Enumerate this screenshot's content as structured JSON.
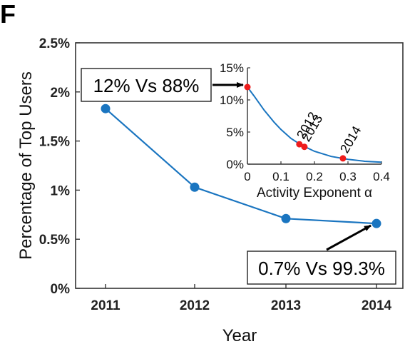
{
  "panel_label": "F",
  "chart_data": [
    {
      "type": "line",
      "xlabel": "Year",
      "ylabel": "Percentage of Top Users",
      "x": [
        "2011",
        "2012",
        "2013",
        "2014"
      ],
      "y": [
        1.83,
        1.03,
        0.71,
        0.66
      ],
      "y_unit": "%",
      "ylim": [
        0,
        2.5
      ],
      "y_ticks": [
        "0%",
        "0.5%",
        "1%",
        "1.5%",
        "2%",
        "2.5%"
      ],
      "y_tick_values": [
        0,
        0.5,
        1,
        1.5,
        2,
        2.5
      ],
      "grid": false,
      "series_color": "#1a75c0",
      "annotations": [
        {
          "text": "12% Vs 88%",
          "target": "inset-point-alpha-0"
        },
        {
          "text": "0.7% Vs 99.3%",
          "target": "2014"
        }
      ]
    },
    {
      "type": "line",
      "xlabel": "Activity Exponent α",
      "xlim": [
        0,
        0.4
      ],
      "ylim": [
        0,
        15
      ],
      "x_ticks": [
        "0",
        "0.1",
        "0.2",
        "0.3",
        "0.4"
      ],
      "x_tick_values": [
        0,
        0.1,
        0.2,
        0.3,
        0.4
      ],
      "y_ticks": [
        "0%",
        "5%",
        "10%",
        "15%"
      ],
      "y_tick_values": [
        0,
        5,
        10,
        15
      ],
      "curve": {
        "x": [
          0,
          0.02,
          0.05,
          0.08,
          0.1,
          0.13,
          0.16,
          0.2,
          0.25,
          0.3,
          0.35,
          0.4
        ],
        "y": [
          12,
          10.6,
          8.4,
          6.5,
          5.4,
          4.0,
          3.0,
          2.0,
          1.2,
          0.75,
          0.45,
          0.3
        ]
      },
      "points": [
        {
          "label": "",
          "x": 0,
          "y": 12
        },
        {
          "label": "2012",
          "x": 0.155,
          "y": 3.1
        },
        {
          "label": "2013",
          "x": 0.17,
          "y": 2.7
        },
        {
          "label": "2014",
          "x": 0.285,
          "y": 0.9
        }
      ],
      "curve_color": "#1a75c0",
      "point_color": "#ee1c1c",
      "grid": false
    }
  ]
}
